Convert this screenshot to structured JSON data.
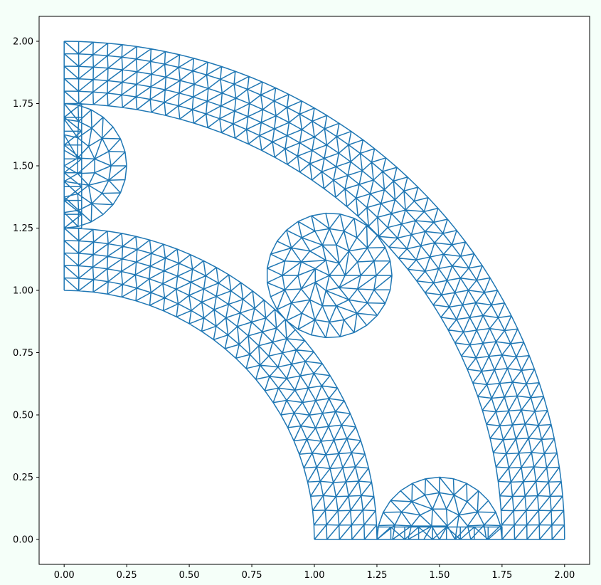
{
  "chart_data": {
    "type": "mesh",
    "title": "",
    "xlabel": "",
    "ylabel": "",
    "xlim": [
      -0.1,
      2.1
    ],
    "ylim": [
      -0.1,
      2.1
    ],
    "xticks": [
      "0.00",
      "0.25",
      "0.50",
      "0.75",
      "1.00",
      "1.25",
      "1.50",
      "1.75",
      "2.00"
    ],
    "yticks": [
      "0.00",
      "0.25",
      "0.50",
      "0.75",
      "1.00",
      "1.25",
      "1.50",
      "1.75",
      "2.00"
    ],
    "grid": false,
    "mesh_color": "#1f77b4",
    "element_type": "triangle",
    "regions": {
      "outer_ring": {
        "type": "annular_sector",
        "center": [
          0,
          0
        ],
        "r_inner": 1.75,
        "r_outer": 2.0,
        "theta_deg": [
          0,
          90
        ]
      },
      "inner_ring": {
        "type": "annular_sector",
        "center": [
          0,
          0
        ],
        "r_inner": 1.0,
        "r_outer": 1.25,
        "theta_deg": [
          0,
          90
        ]
      },
      "left_strip": {
        "type": "rectangle",
        "x": [
          0,
          0.07
        ],
        "y": [
          1.25,
          1.75
        ]
      },
      "left_half_disk": {
        "type": "half_disk",
        "center": [
          0.0,
          1.5
        ],
        "radius": 0.25,
        "side": "right"
      },
      "bottom_strip": {
        "type": "rectangle",
        "x": [
          1.25,
          1.75
        ],
        "y": [
          0,
          0.05
        ]
      },
      "bottom_half_disk": {
        "type": "half_disk",
        "center": [
          1.5,
          0.0
        ],
        "radius": 0.25,
        "side": "top"
      },
      "center_disk": {
        "type": "disk",
        "center": [
          1.06,
          1.06
        ],
        "radius": 0.25
      }
    }
  }
}
